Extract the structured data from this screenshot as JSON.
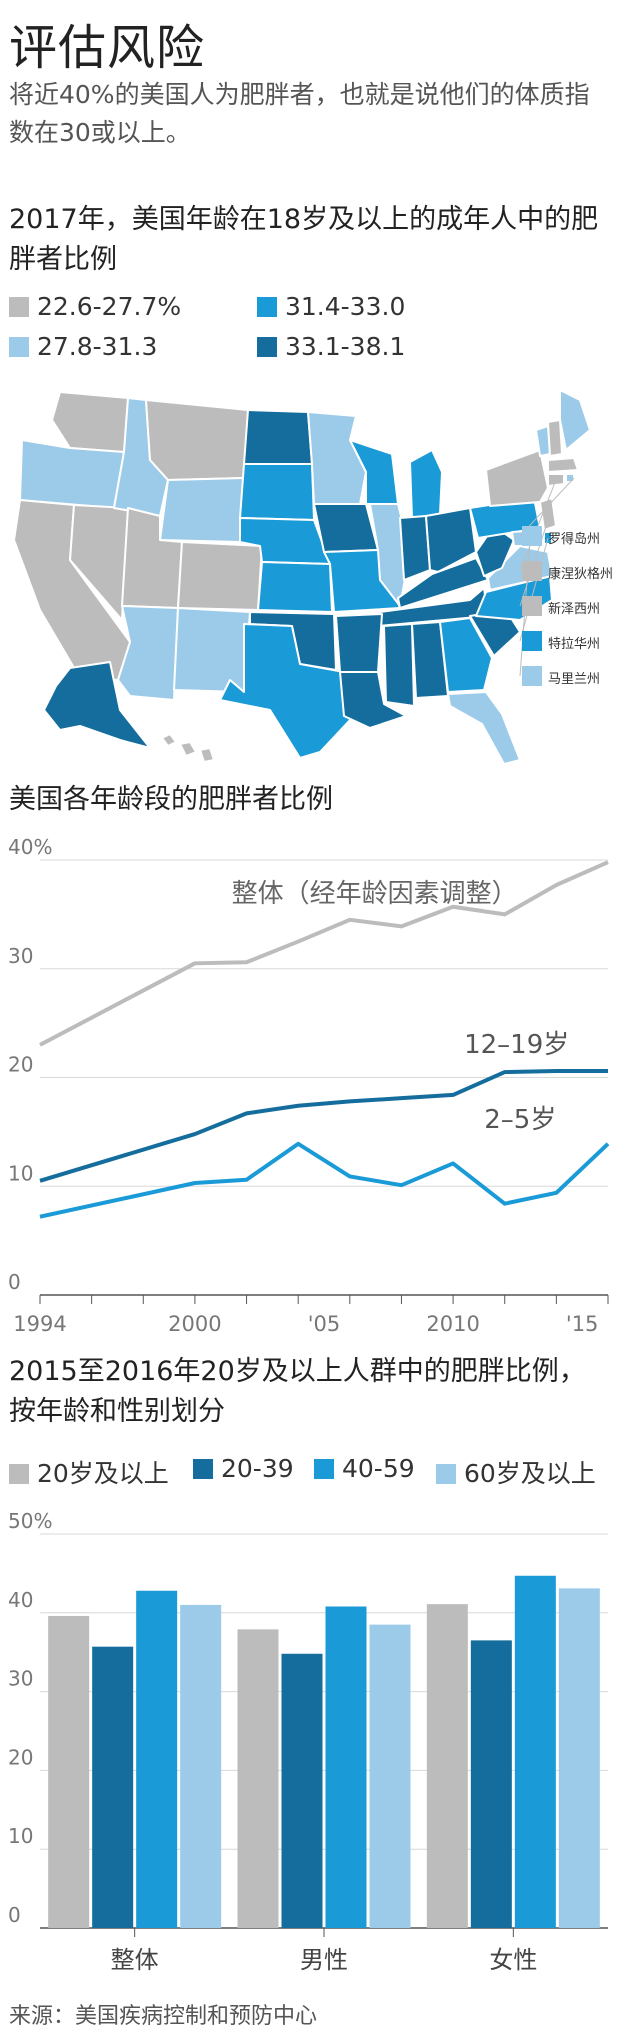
{
  "header": {
    "title": "评估风险",
    "subtitle": "将近40%的美国人为肥胖者，也就是说他们的体质指数在30或以上。"
  },
  "map": {
    "title": "2017年，美国年龄在18岁及以上的成年人中的肥胖者比例",
    "legend": [
      {
        "label": "22.6-27.7%",
        "color": "#bcbcbc"
      },
      {
        "label": "31.4-33.0",
        "color": "#1a9ad6"
      },
      {
        "label": "27.8-31.3",
        "color": "#9ccbe9"
      },
      {
        "label": "33.1-38.1",
        "color": "#146d9c"
      }
    ],
    "callouts": [
      {
        "label": "罗得岛州",
        "color": "#9ccbe9"
      },
      {
        "label": "康涅狄格州",
        "color": "#bcbcbc"
      },
      {
        "label": "新泽西州",
        "color": "#bcbcbc"
      },
      {
        "label": "特拉华州",
        "color": "#1a9ad6"
      },
      {
        "label": "马里兰州",
        "color": "#9ccbe9"
      }
    ]
  },
  "source": "来源：美国疾病控制和预防中心",
  "chart_data": [
    {
      "type": "line",
      "title": "美国各年龄段的肥胖者比例",
      "x_ticks": [
        "1994",
        "2000",
        "'05",
        "2010",
        "'15"
      ],
      "x_tick_values": [
        1994,
        2000,
        2005,
        2010,
        2015
      ],
      "xlim": [
        1994,
        2016
      ],
      "y_ticks": [
        "40%",
        "30",
        "20",
        "10",
        "0"
      ],
      "y_tick_values": [
        40,
        30,
        20,
        10,
        0
      ],
      "ylim": [
        0,
        40
      ],
      "grid": true,
      "series": [
        {
          "name": "整体（经年龄因素调整）",
          "color": "#bcbcbc",
          "x": [
            1994,
            2000,
            2002,
            2004,
            2006,
            2008,
            2010,
            2012,
            2014,
            2016
          ],
          "values": [
            23.0,
            30.5,
            30.6,
            32.5,
            34.5,
            33.9,
            35.7,
            35.0,
            37.7,
            39.8
          ]
        },
        {
          "name": "12–19岁",
          "color": "#146d9c",
          "x": [
            1994,
            2000,
            2002,
            2004,
            2006,
            2008,
            2010,
            2012,
            2014,
            2016
          ],
          "values": [
            10.5,
            14.8,
            16.7,
            17.4,
            17.8,
            18.1,
            18.4,
            20.5,
            20.6,
            20.6
          ]
        },
        {
          "name": "2–5岁",
          "color": "#1a9ad6",
          "x": [
            1994,
            2000,
            2002,
            2004,
            2006,
            2008,
            2010,
            2012,
            2014,
            2016
          ],
          "values": [
            7.2,
            10.3,
            10.6,
            13.9,
            10.9,
            10.1,
            12.1,
            8.4,
            9.4,
            13.9
          ]
        }
      ]
    },
    {
      "type": "bar",
      "title": "2015至2016年20岁及以上人群中的肥胖比例，按年龄和性别划分",
      "categories": [
        "整体",
        "男性",
        "女性"
      ],
      "y_ticks": [
        "50%",
        "40",
        "30",
        "20",
        "10",
        "0"
      ],
      "y_tick_values": [
        50,
        40,
        30,
        20,
        10,
        0
      ],
      "ylim": [
        0,
        50
      ],
      "grid": true,
      "legend_position": "top",
      "series": [
        {
          "name": "20岁及以上",
          "color": "#bcbcbc",
          "values": [
            39.6,
            37.9,
            41.1
          ]
        },
        {
          "name": "20-39",
          "color": "#146d9c",
          "values": [
            35.7,
            34.8,
            36.5
          ]
        },
        {
          "name": "40-59",
          "color": "#1a9ad6",
          "values": [
            42.8,
            40.8,
            44.7
          ]
        },
        {
          "name": "60岁及以上",
          "color": "#9ccbe9",
          "values": [
            41.0,
            38.5,
            43.1
          ]
        }
      ]
    }
  ]
}
